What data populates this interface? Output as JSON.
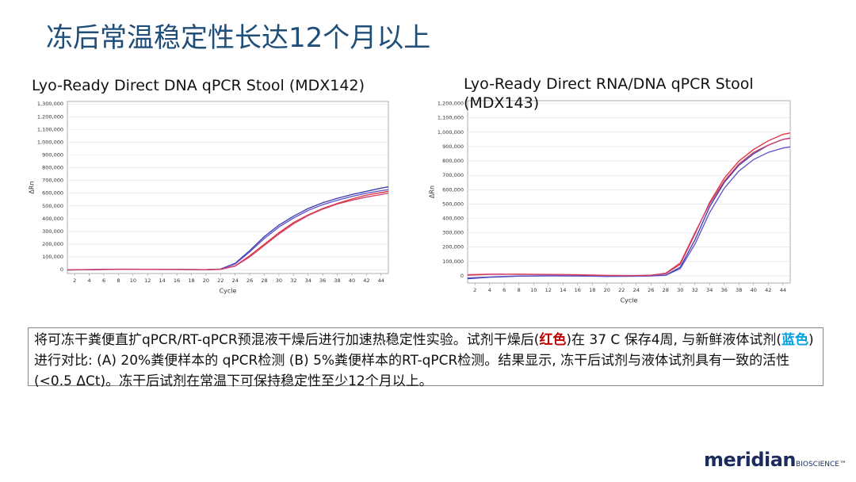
{
  "slide_title": "冻后常温稳定性长达12个月以上",
  "chart_data": [
    {
      "type": "line",
      "title": "Lyo-Ready Direct DNA qPCR Stool (MDX142)",
      "xlabel": "Cycle",
      "ylabel": "ΔRn",
      "x": [
        1,
        4,
        8,
        12,
        16,
        20,
        22,
        24,
        26,
        28,
        30,
        32,
        34,
        36,
        38,
        40,
        42,
        44,
        45
      ],
      "xlim": [
        1,
        45
      ],
      "xticks": [
        2,
        4,
        6,
        8,
        10,
        12,
        14,
        16,
        18,
        20,
        22,
        24,
        26,
        28,
        30,
        32,
        34,
        36,
        38,
        40,
        42,
        44
      ],
      "ylim": [
        -30000,
        1320000
      ],
      "yticks": [
        0,
        {
          "value": 100000,
          "label": "100,000"
        },
        {
          "value": 200000,
          "label": "200,000"
        },
        {
          "value": 300000,
          "label": "300,000"
        },
        {
          "value": 400000,
          "label": "400,000"
        },
        {
          "value": 500000,
          "label": "500,000"
        },
        {
          "value": 600000,
          "label": "600,000"
        },
        {
          "value": 700000,
          "label": "700,000"
        },
        {
          "value": 800000,
          "label": "800,000"
        },
        {
          "value": 900000,
          "label": "900,000"
        },
        {
          "value": 1000000,
          "label": "1,000,000"
        },
        {
          "value": 1100000,
          "label": "1,100,000"
        },
        {
          "value": 1200000,
          "label": "1,200,000"
        },
        {
          "value": 1300000,
          "label": "1,300,000"
        }
      ],
      "grid": true,
      "series": [
        {
          "color": "#3b3bb0",
          "values": [
            -2000,
            0,
            3000,
            2000,
            2000,
            0,
            5000,
            50000,
            150000,
            260000,
            350000,
            420000,
            480000,
            525000,
            560000,
            590000,
            615000,
            640000,
            650000
          ]
        },
        {
          "color": "#5a4fc8",
          "values": [
            -3000,
            0,
            2000,
            2000,
            1000,
            0,
            4000,
            45000,
            140000,
            245000,
            335000,
            405000,
            465000,
            510000,
            545000,
            575000,
            600000,
            620000,
            628000
          ]
        },
        {
          "color": "#e0303a",
          "values": [
            -2000,
            1000,
            4000,
            3000,
            2000,
            0,
            3000,
            30000,
            110000,
            200000,
            290000,
            370000,
            430000,
            480000,
            520000,
            555000,
            585000,
            605000,
            615000
          ]
        },
        {
          "color": "#d0406a",
          "values": [
            -1000,
            1000,
            3000,
            3000,
            2000,
            0,
            2000,
            28000,
            100000,
            190000,
            280000,
            360000,
            425000,
            475000,
            515000,
            545000,
            570000,
            590000,
            600000
          ]
        }
      ]
    },
    {
      "type": "line",
      "title": "Lyo-Ready Direct RNA/DNA qPCR Stool (MDX143)",
      "xlabel": "Cycle",
      "ylabel": "ΔRn",
      "x": [
        1,
        4,
        8,
        12,
        16,
        20,
        24,
        26,
        28,
        30,
        32,
        34,
        36,
        38,
        40,
        42,
        44,
        45
      ],
      "xlim": [
        1,
        45
      ],
      "xticks": [
        2,
        4,
        6,
        8,
        10,
        12,
        14,
        16,
        18,
        20,
        22,
        24,
        26,
        28,
        30,
        32,
        34,
        36,
        38,
        40,
        42,
        44
      ],
      "ylim": [
        -50000,
        1220000
      ],
      "yticks": [
        0,
        {
          "value": 100000,
          "label": "100,000"
        },
        {
          "value": 200000,
          "label": "200,000"
        },
        {
          "value": 300000,
          "label": "300,000"
        },
        {
          "value": 400000,
          "label": "400,000"
        },
        {
          "value": 500000,
          "label": "500,000"
        },
        {
          "value": 600000,
          "label": "600,000"
        },
        {
          "value": 700000,
          "label": "700,000"
        },
        {
          "value": 800000,
          "label": "800,000"
        },
        {
          "value": 900000,
          "label": "900,000"
        },
        {
          "value": 1000000,
          "label": "1,000,000"
        },
        {
          "value": 1100000,
          "label": "1,100,000"
        },
        {
          "value": 1200000,
          "label": "1,200,000"
        }
      ],
      "grid": true,
      "series": [
        {
          "color": "#3b3bb0",
          "values": [
            -20000,
            -10000,
            -2000,
            0,
            0,
            -3000,
            -2000,
            0,
            5000,
            60000,
            250000,
            480000,
            650000,
            770000,
            850000,
            910000,
            950000,
            960000
          ]
        },
        {
          "color": "#5a4fc8",
          "values": [
            -15000,
            -8000,
            -1000,
            0,
            -1000,
            -4000,
            -3000,
            -1000,
            3000,
            50000,
            220000,
            440000,
            610000,
            730000,
            810000,
            860000,
            890000,
            898000
          ]
        },
        {
          "color": "#e0303a",
          "values": [
            5000,
            10000,
            12000,
            10000,
            8000,
            3000,
            2000,
            5000,
            15000,
            80000,
            290000,
            510000,
            680000,
            800000,
            880000,
            940000,
            985000,
            995000
          ]
        },
        {
          "color": "#d0406a",
          "values": [
            8000,
            12000,
            10000,
            9000,
            6000,
            2000,
            1000,
            4000,
            18000,
            90000,
            300000,
            500000,
            660000,
            780000,
            860000,
            910000,
            950000,
            958000
          ]
        }
      ]
    }
  ],
  "caption": [
    {
      "text": "将可冻干粪便直扩qPCR/RT-qPCR预混液干燥后进行加速热稳定性实验。试剂干燥后("
    },
    {
      "text": "红色",
      "color": "#c00000"
    },
    {
      "text": ")在 37 C 保存4周, 与新鲜液体试剂("
    },
    {
      "text": "蓝色",
      "color": "#00a0e0"
    },
    {
      "text": ")进行对比: (A) 20%粪便样本的 qPCR检测 (B) 5%粪便样本的RT-qPCR检测。结果显示, 冻干后试剂与液体试剂具有一致的活性 (<0.5 ΔCt)。冻干后试剂在常温下可保持稳定性至少12个月以上。"
    }
  ],
  "logo": {
    "name": "meridian",
    "sub": "BIOSCIENCE™"
  }
}
